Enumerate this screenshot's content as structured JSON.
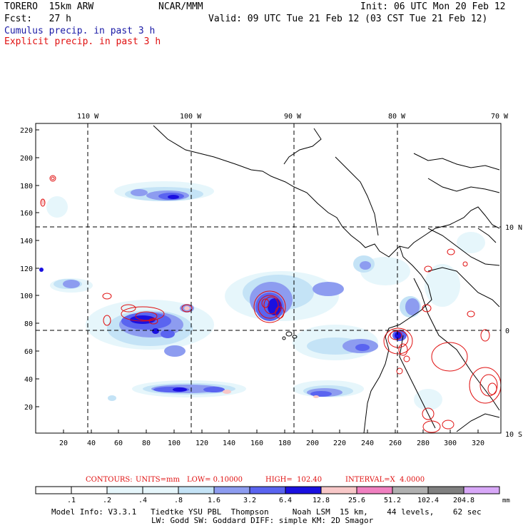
{
  "header": {
    "model": "TORERO  15km ARW",
    "org": "NCAR/MMM",
    "init": "Init: 06 UTC Mon 20 Feb 12",
    "fcst": "Fcst:   27 h",
    "valid": "Valid: 09 UTC Tue 21 Feb 12 (03 CST Tue 21 Feb 12)",
    "field1": "Cumulus precip. in past 3 h",
    "field2": "Explicit precip. in past 3 h"
  },
  "map": {
    "lon_labels": [
      "110 W",
      "100 W",
      "90 W",
      "80 W",
      "70 W"
    ],
    "lat_labels": [
      "10 N",
      "0",
      "10 S"
    ],
    "y_ticks": [
      "220",
      "200",
      "180",
      "160",
      "140",
      "120",
      "100",
      "80",
      "60",
      "40",
      "20"
    ],
    "x_ticks": [
      "20",
      "40",
      "60",
      "80",
      "100",
      "120",
      "140",
      "160",
      "180",
      "200",
      "220",
      "240",
      "260",
      "280",
      "300",
      "320"
    ],
    "colors": {
      "cumulus_light": "#e6f6fb",
      "cumulus_pale": "#c4e3f6",
      "cumulus_mid": "#8d9cf0",
      "cumulus_strong": "#5a64f0",
      "cumulus_deep": "#1a10e0",
      "explicit_contour": "#e01010",
      "outline": "#000000"
    }
  },
  "contours": {
    "title": "CONTOURS:",
    "units": "UNITS=mm",
    "low": "LOW= 0.10000",
    "high": "HIGH=  102.40",
    "interval": "INTERVAL=X  4.0000"
  },
  "colorbar": {
    "labels": [
      ".1",
      ".2",
      ".4",
      ".8",
      "1.6",
      "3.2",
      "6.4",
      "12.8",
      "25.6",
      "51.2",
      "102.4",
      "204.8"
    ],
    "colors": [
      "#ffffff",
      "#ffffff",
      "#e6f6fb",
      "#e6f6fb",
      "#c4e3f6",
      "#8d9cf0",
      "#5a64f0",
      "#1a10e0",
      "#f8c8c8",
      "#f080c0",
      "#b0b0b0",
      "#808080",
      "#d8a8f8"
    ],
    "unit": "mm"
  },
  "footer": {
    "line1": "Model Info: V3.3.1   Tiedtke YSU PBL  Thompson     Noah LSM  15 km,    44 levels,    62 sec",
    "line2": "LW: Godd SW: Goddard DIFF: simple KM: 2D Smagor"
  }
}
